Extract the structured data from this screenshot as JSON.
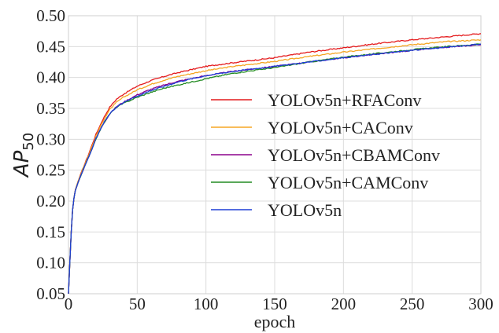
{
  "chart_data": {
    "type": "line",
    "title": "",
    "xlabel": "epoch",
    "ylabel_main": "AP",
    "ylabel_sub": "50",
    "xlim": [
      0,
      300
    ],
    "ylim": [
      0.05,
      0.5
    ],
    "xticks": [
      0,
      50,
      100,
      150,
      200,
      250,
      300
    ],
    "xtick_labels": [
      "0",
      "50",
      "100",
      "150",
      "200",
      "250",
      "300"
    ],
    "yticks": [
      0.05,
      0.1,
      0.15,
      0.2,
      0.25,
      0.3,
      0.35,
      0.4,
      0.45,
      0.5
    ],
    "ytick_labels": [
      "0.05",
      "0.10",
      "0.15",
      "0.20",
      "0.25",
      "0.30",
      "0.35",
      "0.40",
      "0.45",
      "0.50"
    ],
    "grid": true,
    "legend_position": "center-right",
    "series": [
      {
        "name": "YOLOv5n+RFAConv",
        "color": "#e41a1c",
        "x": [
          0,
          1,
          2,
          3,
          4,
          5,
          7,
          10,
          15,
          20,
          25,
          30,
          35,
          40,
          50,
          60,
          70,
          80,
          100,
          120,
          150,
          175,
          200,
          225,
          250,
          275,
          300
        ],
        "y": [
          0.05,
          0.1,
          0.15,
          0.185,
          0.205,
          0.218,
          0.232,
          0.25,
          0.278,
          0.308,
          0.332,
          0.352,
          0.365,
          0.373,
          0.386,
          0.395,
          0.402,
          0.408,
          0.418,
          0.424,
          0.432,
          0.441,
          0.448,
          0.455,
          0.461,
          0.466,
          0.471
        ]
      },
      {
        "name": "YOLOv5n+CAConv",
        "color": "#f5a623",
        "x": [
          0,
          1,
          2,
          3,
          4,
          5,
          7,
          10,
          15,
          20,
          25,
          30,
          35,
          40,
          50,
          60,
          70,
          80,
          100,
          120,
          150,
          175,
          200,
          225,
          250,
          275,
          300
        ],
        "y": [
          0.05,
          0.1,
          0.15,
          0.185,
          0.205,
          0.218,
          0.232,
          0.25,
          0.276,
          0.305,
          0.329,
          0.348,
          0.36,
          0.368,
          0.38,
          0.389,
          0.396,
          0.402,
          0.411,
          0.418,
          0.426,
          0.434,
          0.441,
          0.447,
          0.453,
          0.458,
          0.461
        ]
      },
      {
        "name": "YOLOv5n+CBAMConv",
        "color": "#8b008b",
        "x": [
          0,
          1,
          2,
          3,
          4,
          5,
          7,
          10,
          15,
          20,
          25,
          30,
          35,
          40,
          50,
          60,
          70,
          80,
          100,
          120,
          150,
          175,
          200,
          225,
          250,
          275,
          300
        ],
        "y": [
          0.05,
          0.1,
          0.15,
          0.185,
          0.205,
          0.217,
          0.23,
          0.247,
          0.273,
          0.301,
          0.324,
          0.341,
          0.353,
          0.36,
          0.372,
          0.381,
          0.388,
          0.394,
          0.403,
          0.41,
          0.418,
          0.425,
          0.432,
          0.438,
          0.444,
          0.449,
          0.453
        ]
      },
      {
        "name": "YOLOv5n+CAMConv",
        "color": "#228b22",
        "x": [
          0,
          1,
          2,
          3,
          4,
          5,
          7,
          10,
          15,
          20,
          25,
          30,
          35,
          40,
          50,
          60,
          70,
          80,
          100,
          120,
          150,
          175,
          200,
          225,
          250,
          275,
          300
        ],
        "y": [
          0.05,
          0.1,
          0.15,
          0.185,
          0.205,
          0.217,
          0.23,
          0.247,
          0.273,
          0.301,
          0.324,
          0.341,
          0.352,
          0.358,
          0.368,
          0.376,
          0.383,
          0.388,
          0.398,
          0.407,
          0.416,
          0.425,
          0.433,
          0.439,
          0.445,
          0.45,
          0.454
        ]
      },
      {
        "name": "YOLOv5n",
        "color": "#1f3fd6",
        "x": [
          0,
          1,
          2,
          3,
          4,
          5,
          7,
          10,
          15,
          20,
          25,
          30,
          35,
          40,
          50,
          60,
          70,
          80,
          100,
          120,
          150,
          175,
          200,
          225,
          250,
          275,
          300
        ],
        "y": [
          0.05,
          0.1,
          0.15,
          0.185,
          0.205,
          0.217,
          0.23,
          0.247,
          0.273,
          0.301,
          0.324,
          0.341,
          0.352,
          0.36,
          0.37,
          0.379,
          0.386,
          0.393,
          0.403,
          0.41,
          0.418,
          0.425,
          0.432,
          0.438,
          0.444,
          0.449,
          0.454
        ]
      }
    ]
  }
}
